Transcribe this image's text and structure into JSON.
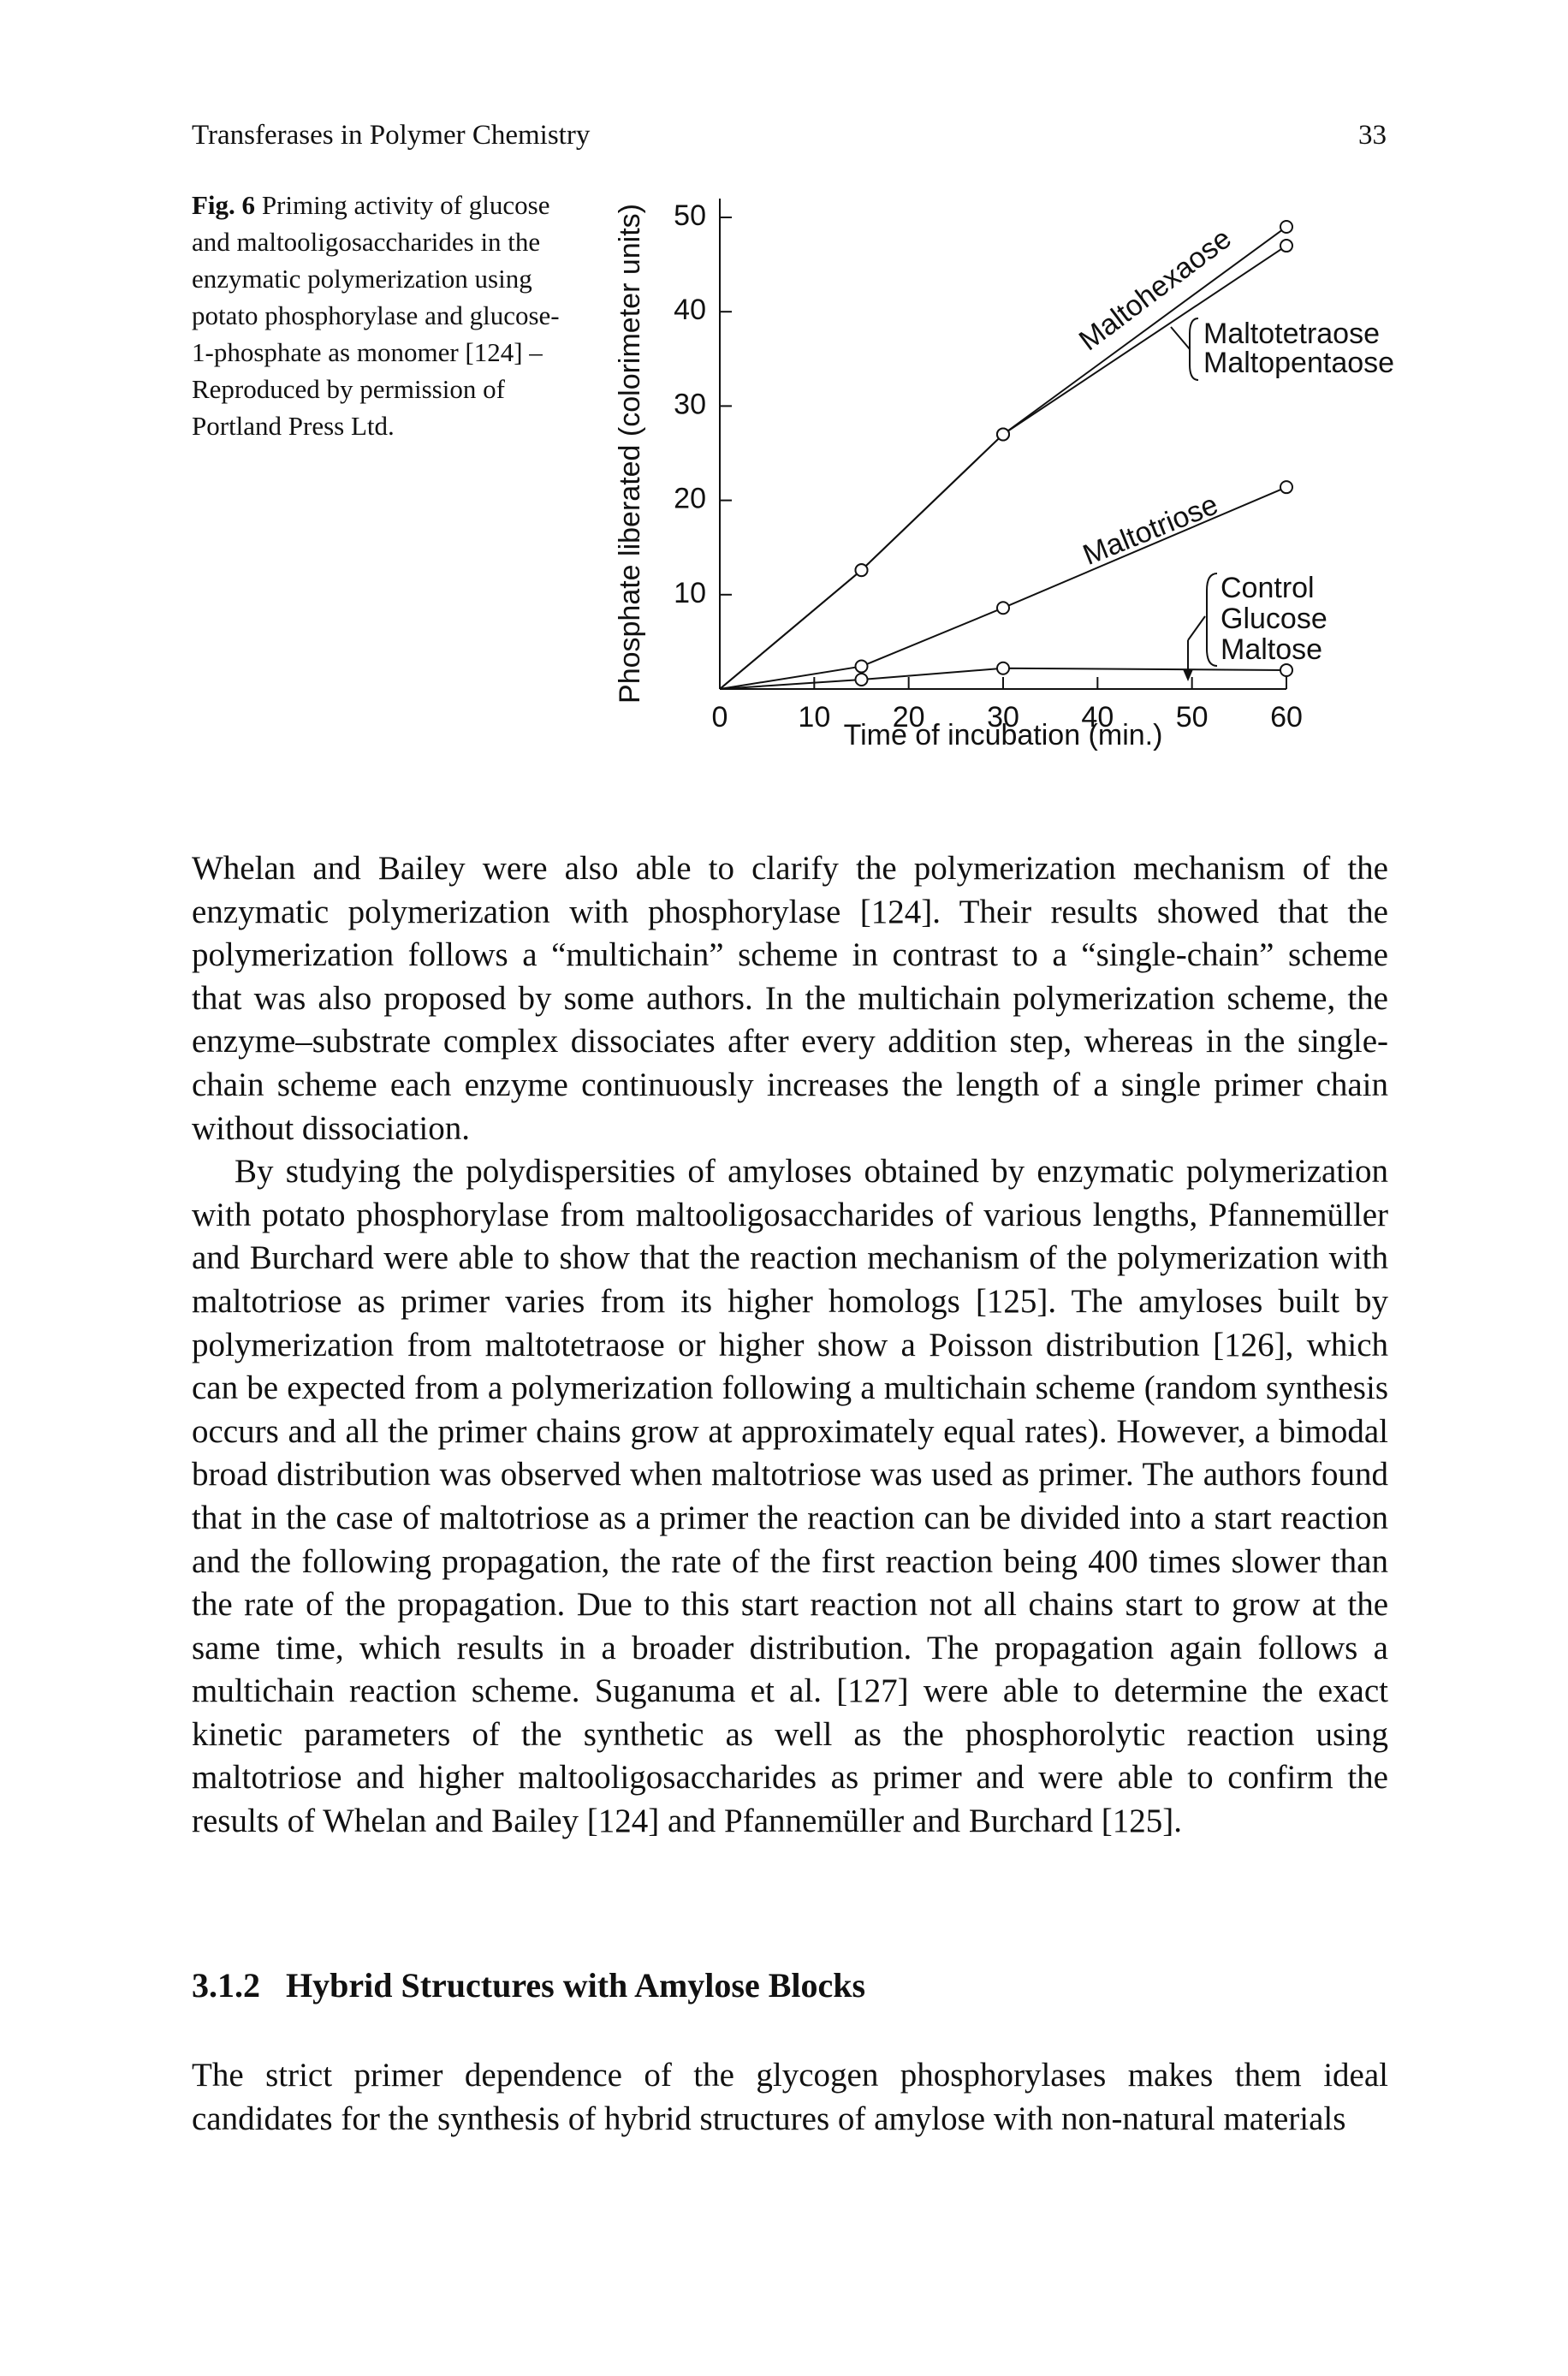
{
  "header": {
    "title": "Transferases in Polymer Chemistry",
    "page": "33"
  },
  "caption": {
    "label": "Fig. 6",
    "text": "Priming activity of glucose and maltooligosaccharides in the enzymatic polymerization using potato phosphorylase and glucose-1-phosphate as monomer [124] – Reproduced by permission of Portland Press Ltd."
  },
  "chart_data": {
    "type": "line",
    "x_label": "Time of incubation (min.)",
    "y_label": "Phosphate liberated (colorimeter units)",
    "xlim": [
      0,
      60
    ],
    "xticks": [
      0,
      10,
      20,
      30,
      40,
      50,
      60
    ],
    "ylim": [
      0,
      50
    ],
    "yticks": [
      10,
      20,
      30,
      40,
      50
    ],
    "color": "#111111",
    "series": [
      {
        "name": "Maltohexaose",
        "x": [
          0,
          15,
          30,
          60
        ],
        "values": [
          0,
          12.6,
          27,
          49
        ]
      },
      {
        "labels": [
          "Maltotetraose",
          "Maltopentaose"
        ],
        "x": [
          0,
          15,
          30,
          60
        ],
        "values": [
          0,
          12.6,
          27,
          47
        ]
      },
      {
        "name": "Maltotriose",
        "x": [
          0,
          15,
          30,
          60
        ],
        "values": [
          0,
          2.4,
          8.6,
          21.4
        ]
      },
      {
        "labels": [
          "Control",
          "Glucose",
          "Maltose"
        ],
        "x": [
          0,
          15,
          30,
          60
        ],
        "values": [
          0,
          1,
          2.2,
          2
        ]
      }
    ]
  },
  "paragraphs": [
    "Whelan and Bailey were also able to clarify the polymerization mechanism of the enzymatic polymerization with phosphorylase [124]. Their results showed that the polymerization follows a “multichain” scheme in contrast to a “single-chain” scheme that was also proposed by some authors. In the multichain polymerization scheme, the enzyme–substrate complex dissociates after every addition step, whereas in the single-chain scheme each enzyme continuously increases the length of a single primer chain without dissociation.",
    "By studying the polydispersities of amyloses obtained by enzymatic polymerization with potato phosphorylase from maltooligosaccharides of various lengths, Pfannemüller and Burchard were able to show that the reaction mechanism of the polymerization with maltotriose as primer varies from its higher homologs [125]. The amyloses built by polymerization from maltotetraose or higher show a Poisson distribution [126], which can be expected from a polymerization following a multichain scheme (random synthesis occurs and all the primer chains grow at approximately equal rates). However, a bimodal broad distribution was observed when maltotriose was used as primer. The authors found that in the case of maltotriose as a primer the reaction can be divided into a start reaction and the following propagation, the rate of the first reaction being 400 times slower than the rate of the propagation. Due to this start reaction not all chains start to grow at the same time, which results in a broader distribution. The propagation again follows a multichain reaction scheme. Suganuma et al. [127] were able to determine the exact kinetic parameters of the synthetic as well as the phosphorolytic reaction using maltotriose and higher maltooligosaccharides as primer and were able to confirm the results of Whelan and Bailey [124] and Pfannemüller and Burchard [125]."
  ],
  "section": {
    "number": "3.1.2",
    "title": "Hybrid Structures with Amylose Blocks"
  },
  "last_paragraph": "The strict primer dependence of the glycogen phosphorylases makes them ideal candidates for the synthesis of hybrid structures of amylose with non-natural materials"
}
